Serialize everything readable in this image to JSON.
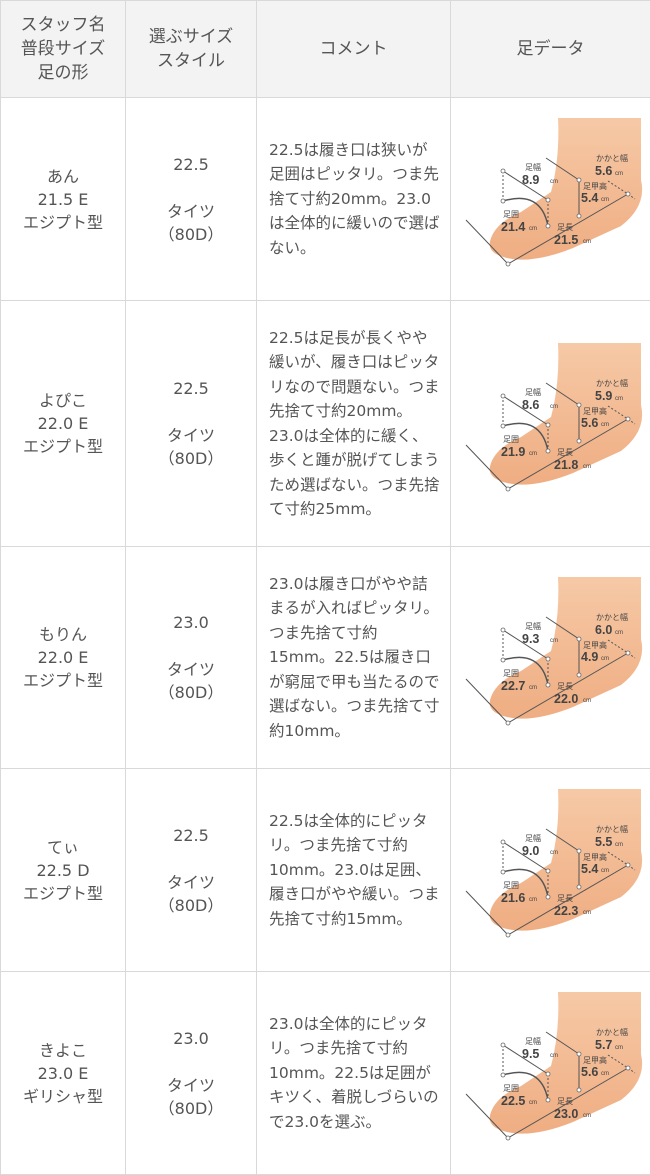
{
  "header": {
    "col1": [
      "スタッフ名",
      "普段サイズ",
      "足の形"
    ],
    "col2": [
      "選ぶサイズ",
      "スタイル"
    ],
    "col3": "コメント",
    "col4": "足データ"
  },
  "diagram_labels": {
    "width": "足幅",
    "girth": "足囲",
    "length": "足長",
    "instep": "足甲高",
    "heel": "かかと幅",
    "unit": "cm"
  },
  "rows": [
    {
      "name": "あん",
      "usual_size": "21.5 E",
      "foot_shape": "エジプト型",
      "chosen_size": "22.5",
      "style": "タイツ",
      "denier": "（80D）",
      "comment": "22.5は履き口は狭いが足囲はピッタリ。つま先捨て寸約20mm。23.0は全体的に緩いので選ばない。",
      "foot": {
        "width": "8.9",
        "girth": "21.4",
        "length": "21.5",
        "instep": "5.4",
        "heel": "5.6"
      }
    },
    {
      "name": "よぴこ",
      "usual_size": "22.0 E",
      "foot_shape": "エジプト型",
      "chosen_size": "22.5",
      "style": "タイツ",
      "denier": "（80D）",
      "comment": "22.5は足長が長くやや緩いが、履き口はピッタリなので問題ない。つま先捨て寸約20mm。23.0は全体的に緩く、歩くと踵が脱げてしまうため選ばない。つま先捨て寸約25mm。",
      "foot": {
        "width": "8.6",
        "girth": "21.9",
        "length": "21.8",
        "instep": "5.6",
        "heel": "5.9"
      }
    },
    {
      "name": "もりん",
      "usual_size": "22.0 E",
      "foot_shape": "エジプト型",
      "chosen_size": "23.0",
      "style": "タイツ",
      "denier": "（80D）",
      "comment": "23.0は履き口がやや詰まるが入ればピッタリ。つま先捨て寸約15mm。22.5は履き口が窮屈で甲も当たるので選ばない。つま先捨て寸約10mm。",
      "foot": {
        "width": "9.3",
        "girth": "22.7",
        "length": "22.0",
        "instep": "4.9",
        "heel": "6.0"
      }
    },
    {
      "name": "てぃ",
      "usual_size": "22.5 D",
      "foot_shape": "エジプト型",
      "chosen_size": "22.5",
      "style": "タイツ",
      "denier": "（80D）",
      "comment": "22.5は全体的にピッタリ。つま先捨て寸約10mm。23.0は足囲、履き口がやや緩い。つま先捨て寸約15mm。",
      "foot": {
        "width": "9.0",
        "girth": "21.6",
        "length": "22.3",
        "instep": "5.4",
        "heel": "5.5"
      }
    },
    {
      "name": "きよこ",
      "usual_size": "23.0 E",
      "foot_shape": "ギリシャ型",
      "chosen_size": "23.0",
      "style": "タイツ",
      "denier": "（80D）",
      "comment": "23.0は全体的にピッタリ。つま先捨て寸約10mm。22.5は足囲がキツく、着脱しづらいので23.0を選ぶ。",
      "foot": {
        "width": "9.5",
        "girth": "22.5",
        "length": "23.0",
        "instep": "5.6",
        "heel": "5.7"
      }
    }
  ]
}
